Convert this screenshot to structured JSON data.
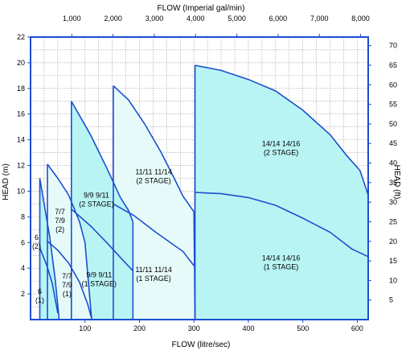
{
  "chart_data": {
    "type": "area",
    "title": "",
    "xlabel": "FLOW  (litre/sec)",
    "x2label": "FLOW  (Imperial gal/min)",
    "ylabel": "HEAD  (m)",
    "y2label": "HEAD  (ft)",
    "xlim": [
      0,
      620
    ],
    "ylim": [
      0,
      22
    ],
    "x2lim": [
      0,
      8184
    ],
    "y2lim": [
      0,
      72.2
    ],
    "x_ticks": [
      100,
      200,
      300,
      400,
      500,
      600
    ],
    "y_ticks": [
      2,
      4,
      6,
      8,
      10,
      12,
      14,
      16,
      18,
      20,
      22
    ],
    "x2_ticks": [
      {
        "value": 1000,
        "label": "1,000"
      },
      {
        "value": 2000,
        "label": "2,000"
      },
      {
        "value": 3000,
        "label": "3,000"
      },
      {
        "value": 4000,
        "label": "4,000"
      },
      {
        "value": 5000,
        "label": "5,000"
      },
      {
        "value": 6000,
        "label": "6,000"
      },
      {
        "value": 7000,
        "label": "7,000"
      },
      {
        "value": 8000,
        "label": "8,000"
      }
    ],
    "y2_ticks": [
      5,
      10,
      15,
      20,
      25,
      30,
      35,
      40,
      45,
      50,
      55,
      60,
      65,
      70
    ],
    "grid": true,
    "colors": {
      "axis": "#1b4fd0",
      "fill": "#b9f4f4",
      "fill_light": "#e6fafa",
      "curve": "#1b4fd0",
      "grid": "#9a9a9a"
    },
    "series": [
      {
        "name": "14/14   14/16 (2 STAGE)",
        "fill": "dark",
        "points": [
          [
            302,
            19.8
          ],
          [
            350,
            19.4
          ],
          [
            400,
            18.7
          ],
          [
            450,
            17.8
          ],
          [
            500,
            16.3
          ],
          [
            550,
            14.4
          ],
          [
            580,
            12.8
          ],
          [
            605,
            11.6
          ],
          [
            620,
            9.7
          ]
        ],
        "x_start": 302,
        "x_end": 620
      },
      {
        "name": "14/14   14/16 (1 STAGE)",
        "fill": "dark",
        "points": [
          [
            302,
            9.9
          ],
          [
            350,
            9.8
          ],
          [
            400,
            9.5
          ],
          [
            450,
            8.9
          ],
          [
            500,
            7.9
          ],
          [
            550,
            6.8
          ],
          [
            590,
            5.5
          ],
          [
            620,
            4.9
          ]
        ],
        "x_start": 302,
        "x_end": 620
      },
      {
        "name": "11/11   11/14 (2 STAGE)",
        "fill": "light",
        "points": [
          [
            152,
            18.2
          ],
          [
            180,
            17.1
          ],
          [
            210,
            15.2
          ],
          [
            240,
            13.0
          ],
          [
            265,
            10.9
          ],
          [
            280,
            9.6
          ],
          [
            300,
            8.4
          ]
        ],
        "x_start": 152,
        "x_end": 302
      },
      {
        "name": "11/11   11/14 (1 STAGE)",
        "fill": "light",
        "points": [
          [
            152,
            9.0
          ],
          [
            190,
            8.1
          ],
          [
            230,
            6.8
          ],
          [
            260,
            5.9
          ],
          [
            280,
            5.3
          ],
          [
            300,
            4.2
          ]
        ],
        "x_start": 152,
        "x_end": 302
      },
      {
        "name": "9/9   9/11 (2 STAGE)",
        "fill": "dark",
        "points": [
          [
            75,
            17.0
          ],
          [
            110,
            14.4
          ],
          [
            140,
            11.8
          ],
          [
            165,
            9.5
          ],
          [
            180,
            8.5
          ],
          [
            188,
            7.6
          ]
        ],
        "x_start": 75,
        "x_end": 188
      },
      {
        "name": "9/9   9/11 (1 STAGE)",
        "fill": "dark",
        "points": [
          [
            75,
            8.6
          ],
          [
            110,
            7.3
          ],
          [
            140,
            6.0
          ],
          [
            170,
            4.6
          ],
          [
            188,
            3.8
          ]
        ],
        "x_start": 75,
        "x_end": 188
      },
      {
        "name": "7/7 7/9 (2)",
        "fill": "light",
        "points": [
          [
            31,
            12.1
          ],
          [
            50,
            11.0
          ],
          [
            70,
            9.7
          ],
          [
            90,
            7.6
          ],
          [
            100,
            6.0
          ],
          [
            112,
            0.1
          ]
        ],
        "x_start": 31,
        "x_end": 112
      },
      {
        "name": "7/7 7/9 (1)",
        "fill": "light",
        "points": [
          [
            31,
            6.1
          ],
          [
            50,
            5.4
          ],
          [
            70,
            4.4
          ],
          [
            90,
            2.9
          ],
          [
            105,
            1.2
          ],
          [
            112,
            0.1
          ]
        ],
        "x_start": 31,
        "x_end": 112
      },
      {
        "name": "6 (2)",
        "fill": "dark",
        "points": [
          [
            17,
            11.0
          ],
          [
            25,
            9.0
          ],
          [
            35,
            6.5
          ],
          [
            45,
            3.2
          ],
          [
            52,
            0.3
          ]
        ],
        "x_start": 17,
        "x_end": 52
      },
      {
        "name": "6 (1)",
        "fill": "dark",
        "points": [
          [
            17,
            5.6
          ],
          [
            30,
            4.2
          ],
          [
            40,
            2.8
          ],
          [
            50,
            0.5
          ]
        ],
        "x_start": 17,
        "x_end": 52
      }
    ],
    "region_labels": [
      {
        "lines": [
          "14/14     14/16",
          "(2 STAGE)"
        ],
        "x": 460,
        "y": 13.5
      },
      {
        "lines": [
          "14/14     14/16",
          "(1 STAGE)"
        ],
        "x": 460,
        "y": 4.6
      },
      {
        "lines": [
          "11/11   11/14",
          "(2 STAGE)"
        ],
        "x": 226,
        "y": 11.3
      },
      {
        "lines": [
          "11/11   11/14",
          "(1 STAGE)"
        ],
        "x": 226,
        "y": 3.7
      },
      {
        "lines": [
          "9/9    9/11",
          "(2 STAGE)"
        ],
        "x": 121,
        "y": 9.5
      },
      {
        "lines": [
          "9/9    9/11",
          "(1 STAGE)"
        ],
        "x": 126,
        "y": 3.3
      },
      {
        "lines": [
          "7/7",
          "7/9",
          "(2)"
        ],
        "x": 54,
        "y": 8.2
      },
      {
        "lines": [
          "7/7",
          "7/9",
          "(1)"
        ],
        "x": 67,
        "y": 3.2
      },
      {
        "lines": [
          "6",
          "(2)"
        ],
        "x": 11,
        "y": 6.2
      },
      {
        "lines": [
          "6",
          "(1)"
        ],
        "x": 17,
        "y": 2.0
      }
    ]
  }
}
